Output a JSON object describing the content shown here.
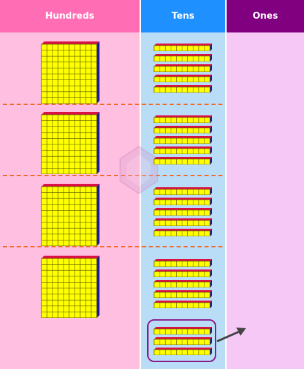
{
  "columns": {
    "hundreds": {
      "label": "Hundreds",
      "header_color": "#ff6eb4",
      "body_color": "#ffbfe0"
    },
    "tens": {
      "label": "Tens",
      "header_color": "#1e90ff",
      "body_color": "#b9dcf7"
    },
    "ones": {
      "label": "Ones",
      "header_color": "#800080",
      "body_color": "#f6c8f6"
    }
  },
  "blocks": {
    "cube_face": "#ffff00",
    "cube_top": "#dd1144",
    "cube_side": "#1a1aa0",
    "grid_line": "#555500"
  },
  "rows": [
    {
      "hundreds": 1,
      "tens": 5
    },
    {
      "hundreds": 1,
      "tens": 5
    },
    {
      "hundreds": 1,
      "tens": 5
    },
    {
      "hundreds": 1,
      "tens": 5
    }
  ],
  "regroup": {
    "tens": 3,
    "highlighted": true,
    "arrow_to": "ones"
  },
  "divider_color": "#f06a2a",
  "highlight_color": "#8b1b8b"
}
